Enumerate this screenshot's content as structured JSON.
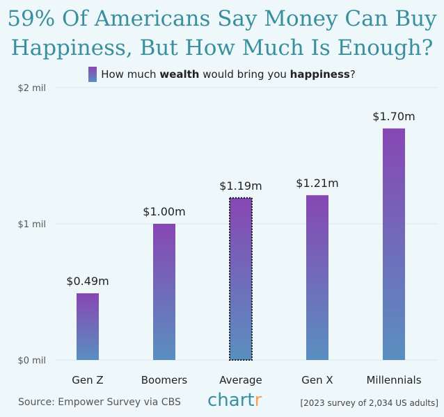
{
  "title_lines": [
    "59% Of Americans Say Money Can Buy",
    "Happiness, But How Much Is Enough?"
  ],
  "legend": {
    "prefix": "How much ",
    "bold1": "wealth",
    "middle": " would bring you ",
    "bold2": "happiness",
    "suffix": "?"
  },
  "footer": {
    "source": "Source: Empower Survey via CBS",
    "brand_main": "chart",
    "brand_accent": "r",
    "note": "[2023 survey of 2,034 US adults]"
  },
  "colors": {
    "title": "#3a8f9e",
    "bar_top": "#8747b3",
    "bar_bottom": "#5a8fc0",
    "background": "#eef8fb"
  },
  "chart_data": {
    "type": "bar",
    "categories": [
      "Gen Z",
      "Boomers",
      "Average",
      "Gen X",
      "Millennials"
    ],
    "values": [
      0.49,
      1.0,
      1.19,
      1.21,
      1.7
    ],
    "value_labels": [
      "$0.49m",
      "$1.00m",
      "$1.19m",
      "$1.21m",
      "$1.70m"
    ],
    "highlighted_category": "Average",
    "y_ticks": [
      0,
      1,
      2
    ],
    "y_tick_labels": [
      "$0 mil",
      "$1 mil",
      "$2 mil"
    ],
    "ylim": [
      0,
      2
    ],
    "grid": "y-major",
    "xlabel": "",
    "ylabel": ""
  }
}
